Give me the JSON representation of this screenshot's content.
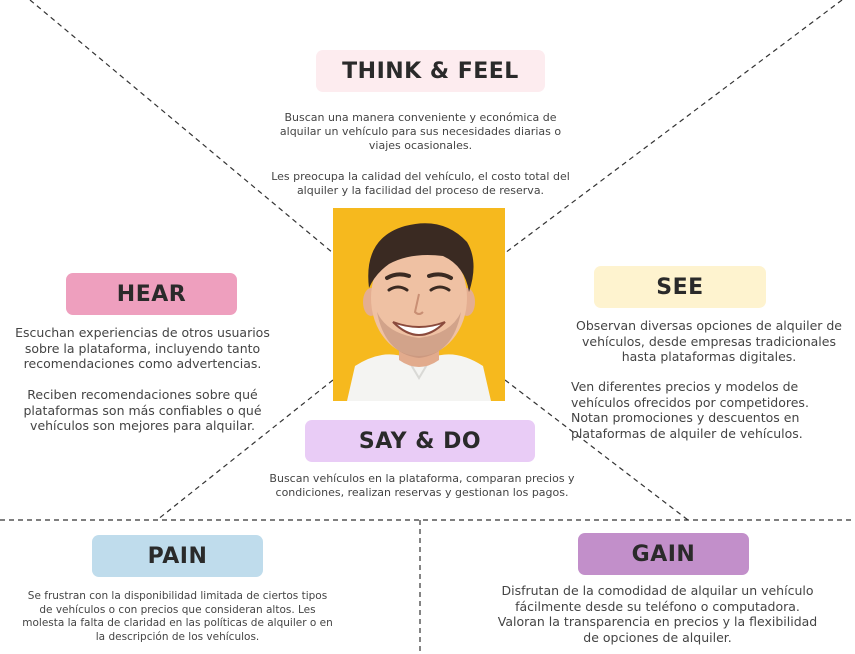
{
  "colors": {
    "think_feel": "#fdecef",
    "hear": "#ee9fbe",
    "see": "#fef3cf",
    "say_do": "#e9ccf6",
    "pain": "#bfdcec",
    "gain": "#c28fca",
    "photo_background": "#f6b91e"
  },
  "think_feel": {
    "title": "THINK & FEEL",
    "text1": "Buscan una manera conveniente y económica de\nalquilar un vehículo para sus necesidades diarias o\nviajes ocasionales.",
    "text2": "Les preocupa la calidad del vehículo, el costo total del\nalquiler y la facilidad del proceso de reserva."
  },
  "hear": {
    "title": "HEAR",
    "text1": "Escuchan experiencias de otros usuarios\nsobre la plataforma, incluyendo tanto\nrecomendaciones como advertencias.",
    "text2": "Reciben recomendaciones sobre qué\nplataformas son más confiables o qué\nvehículos son mejores para alquilar."
  },
  "see": {
    "title": "SEE",
    "text1": "Observan diversas opciones de alquiler de\nvehículos, desde empresas tradicionales\nhasta plataformas digitales.",
    "text2": "Ven diferentes precios y modelos de\nvehículos ofrecidos por competidores.\nNotan promociones y descuentos en\nplataformas de alquiler de vehículos."
  },
  "say_do": {
    "title": "SAY & DO",
    "text": "Buscan vehículos en la plataforma, comparan precios y\ncondiciones, realizan reservas y gestionan los pagos."
  },
  "pain": {
    "title": "PAIN",
    "text": "Se frustran con la disponibilidad limitada de ciertos tipos\nde vehículos o con precios que consideran altos. Les\nmolesta la falta de claridad en las políticas de alquiler o en\nla descripción de los vehículos."
  },
  "gain": {
    "title": "GAIN",
    "text": "Disfrutan de la comodidad de alquilar un vehículo\nfácilmente desde su teléfono o computadora.\nValoran la transparencia en precios y la flexibilidad\nde opciones de alquiler."
  }
}
